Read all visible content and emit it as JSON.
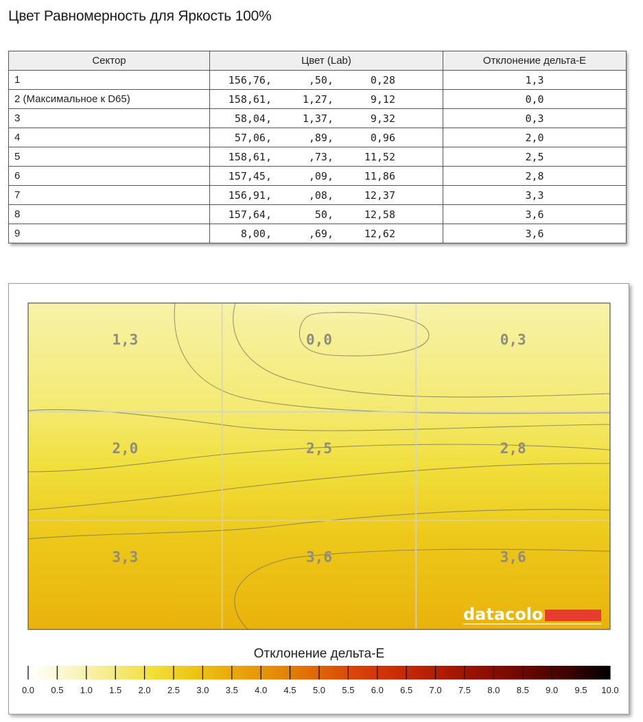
{
  "page": {
    "title": "Цвет Равномерность для Яркость 100%"
  },
  "table": {
    "headers": [
      "Сектор",
      "Цвет (Lab)",
      "Отклонение дельта-E"
    ],
    "rows": [
      {
        "sector": "1",
        "L": "156,76,",
        "a": ",50,",
        "b": "0,28",
        "de": "1,3"
      },
      {
        "sector": "2 (Максимальное к D65)",
        "L": "158,61,",
        "a": "1,27,",
        "b": "9,12",
        "de": "0,0"
      },
      {
        "sector": "3",
        "L": "58,04,",
        "a": "1,37,",
        "b": "9,32",
        "de": "0,3"
      },
      {
        "sector": "4",
        "L": "57,06,",
        "a": ",89,",
        "b": "0,96",
        "de": "2,0"
      },
      {
        "sector": "5",
        "L": "158,61,",
        "a": ",73,",
        "b": "11,52",
        "de": "2,5"
      },
      {
        "sector": "6",
        "L": "157,45,",
        "a": ",09,",
        "b": "11,86",
        "de": "2,8"
      },
      {
        "sector": "7",
        "L": "156,91,",
        "a": ",08,",
        "b": "12,37",
        "de": "3,3"
      },
      {
        "sector": "8",
        "L": "157,64,",
        "a": "50,",
        "b": "12,58",
        "de": "3,6"
      },
      {
        "sector": "9",
        "L": "8,00,",
        "a": ",69,",
        "b": "12,62",
        "de": "3,6"
      }
    ]
  },
  "chart_data": {
    "type": "heatmap",
    "title": "",
    "grid": {
      "rows": 3,
      "cols": 3
    },
    "cells": [
      [
        "1,3",
        "0,0",
        "0,3"
      ],
      [
        "2,0",
        "2,5",
        "2,8"
      ],
      [
        "3,3",
        "3,6",
        "3,6"
      ]
    ],
    "values": [
      [
        1.3,
        0.0,
        0.3
      ],
      [
        2.0,
        2.5,
        2.8
      ],
      [
        3.3,
        3.6,
        3.6
      ]
    ],
    "logo": "datacolor",
    "colorbar": {
      "label": "Отклонение дельта-E",
      "min": 0,
      "max": 10,
      "ticks": [
        "0.0",
        "0.5",
        "1.0",
        "1.5",
        "2.0",
        "2.5",
        "3.0",
        "3.5",
        "4.0",
        "4.5",
        "5.0",
        "5.5",
        "6.0",
        "6.5",
        "7.0",
        "7.5",
        "8.0",
        "8.5",
        "9.0",
        "9.5",
        "10.0"
      ],
      "colors": [
        "#ffffff",
        "#fbf6c8",
        "#f6ea86",
        "#f2de3a",
        "#edc415",
        "#e9a70a",
        "#e58a07",
        "#e06406",
        "#d84008",
        "#c92a06",
        "#ae1a02",
        "#8e0f01",
        "#6a0602",
        "#3e0202",
        "#000000"
      ]
    }
  }
}
